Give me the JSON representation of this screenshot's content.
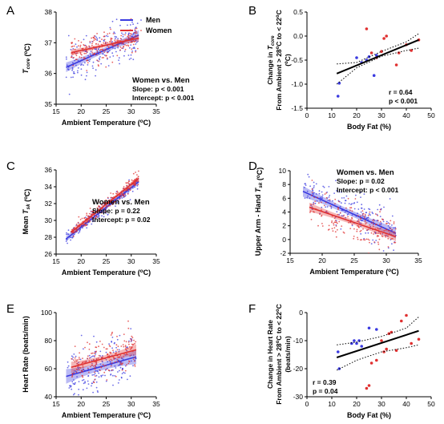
{
  "chart_data": [
    {
      "panel": "A",
      "type": "scatter",
      "xlabel": "Ambient Temperature (°C)",
      "ylabel": "T_core (°C)",
      "xlim": [
        15,
        35
      ],
      "ylim": [
        35,
        38
      ],
      "xticks": [
        15,
        20,
        25,
        30,
        35
      ],
      "yticks": [
        35,
        36,
        37,
        38
      ],
      "legend": {
        "position": "top-right",
        "entries": [
          "Men",
          "Women"
        ]
      },
      "annotation": [
        "Women vs. Men",
        "Slope: p < 0.001",
        "Intercept: p < 0.001"
      ],
      "series": [
        {
          "name": "Men",
          "color": "#3a3ae0",
          "fit": {
            "x": [
              17,
              31.5
            ],
            "y": [
              36.2,
              37.25
            ]
          },
          "ci_halfwidth": 0.12,
          "scatter": {
            "x_range": [
              17,
              31.5
            ],
            "sd": 0.35,
            "n": 200
          }
        },
        {
          "name": "Women",
          "color": "#e03030",
          "fit": {
            "x": [
              18,
              31.5
            ],
            "y": [
              36.68,
              37.15
            ]
          },
          "ci_halfwidth": 0.08,
          "scatter": {
            "x_range": [
              18,
              31.5
            ],
            "sd": 0.25,
            "n": 200
          }
        }
      ]
    },
    {
      "panel": "B",
      "type": "scatter",
      "xlabel": "Body Fat (%)",
      "ylabel": "Change in T_core From Ambient > 28°C to < 22°C (°C)",
      "xlim": [
        0,
        50
      ],
      "ylim": [
        -1.5,
        0.5
      ],
      "xticks": [
        0,
        10,
        20,
        30,
        40,
        50
      ],
      "yticks": [
        -1.5,
        -1.0,
        -0.5,
        0.0,
        0.5
      ],
      "annotation": [
        "r = 0.64",
        "p < 0.001"
      ],
      "fit": {
        "x": [
          12,
          45
        ],
        "y": [
          -0.78,
          -0.08
        ]
      },
      "ci": {
        "upper": [
          [
            12,
            -0.58
          ],
          [
            20,
            -0.55
          ],
          [
            30,
            -0.32
          ],
          [
            40,
            -0.12
          ],
          [
            45,
            0.05
          ]
        ],
        "lower": [
          [
            12,
            -1.0
          ],
          [
            20,
            -0.66
          ],
          [
            30,
            -0.42
          ],
          [
            40,
            -0.3
          ],
          [
            45,
            -0.25
          ]
        ]
      },
      "series": [
        {
          "name": "Men",
          "color": "#3a3ae0",
          "points": [
            [
              12.5,
              -1.25
            ],
            [
              13,
              -0.98
            ],
            [
              20,
              -0.45
            ],
            [
              22,
              -0.55
            ],
            [
              24,
              -0.5
            ],
            [
              25,
              -0.43
            ],
            [
              27,
              -0.82
            ],
            [
              28,
              -0.4
            ]
          ]
        },
        {
          "name": "Women",
          "color": "#e03030",
          "points": [
            [
              24,
              0.15
            ],
            [
              26,
              -0.35
            ],
            [
              28,
              -0.45
            ],
            [
              30,
              -0.32
            ],
            [
              31,
              -0.05
            ],
            [
              32,
              0.0
            ],
            [
              36,
              -0.6
            ],
            [
              37,
              -0.35
            ],
            [
              40,
              -0.18
            ],
            [
              42,
              -0.3
            ],
            [
              45,
              -0.08
            ]
          ]
        }
      ]
    },
    {
      "panel": "C",
      "type": "scatter",
      "xlabel": "Ambient Temperature (°C)",
      "ylabel": "Mean T_sk (°C)",
      "xlim": [
        15,
        35
      ],
      "ylim": [
        26,
        36
      ],
      "xticks": [
        15,
        20,
        25,
        30,
        35
      ],
      "yticks": [
        26,
        28,
        30,
        32,
        34,
        36
      ],
      "annotation": [
        "Women vs. Men",
        "Slope: p = 0.22",
        "Intercept: p = 0.02"
      ],
      "series": [
        {
          "name": "Men",
          "color": "#3a3ae0",
          "fit": {
            "x": [
              17,
              31.5
            ],
            "y": [
              27.8,
              34.6
            ]
          },
          "ci_halfwidth": 0.25,
          "scatter": {
            "x_range": [
              17,
              31.5
            ],
            "sd": 0.4,
            "n": 200
          }
        },
        {
          "name": "Women",
          "color": "#e03030",
          "fit": {
            "x": [
              18,
              31.5
            ],
            "y": [
              28.6,
              35.0
            ]
          },
          "ci_halfwidth": 0.25,
          "scatter": {
            "x_range": [
              18,
              31.5
            ],
            "sd": 0.4,
            "n": 200
          }
        }
      ]
    },
    {
      "panel": "D",
      "type": "scatter",
      "xlabel": "Ambient Temperature (°C)",
      "ylabel": "Upper Arm - Hand T_sk (°C)",
      "xlim": [
        15,
        35
      ],
      "ylim": [
        -2,
        10
      ],
      "xticks": [
        15,
        20,
        25,
        30,
        35
      ],
      "yticks": [
        -2,
        0,
        2,
        4,
        6,
        8,
        10
      ],
      "annotation": [
        "Women vs. Men",
        "Slope: p = 0.02",
        "Intercept: p < 0.001"
      ],
      "series": [
        {
          "name": "Men",
          "color": "#3a3ae0",
          "fit": {
            "x": [
              17,
              31.5
            ],
            "y": [
              7.0,
              0.9
            ]
          },
          "ci_halfwidth": 0.6,
          "scatter": {
            "x_range": [
              17,
              31.5
            ],
            "sd": 1.5,
            "n": 200
          }
        },
        {
          "name": "Women",
          "color": "#e03030",
          "fit": {
            "x": [
              18,
              31.5
            ],
            "y": [
              4.7,
              0.4
            ]
          },
          "ci_halfwidth": 0.5,
          "scatter": {
            "x_range": [
              18,
              31.5
            ],
            "sd": 1.4,
            "n": 200
          }
        }
      ]
    },
    {
      "panel": "E",
      "type": "scatter",
      "xlabel": "Ambient Temperature (°C)",
      "ylabel": "Heart Rate (beats/min)",
      "xlim": [
        15,
        35
      ],
      "ylim": [
        40,
        100
      ],
      "xticks": [
        15,
        20,
        25,
        30,
        35
      ],
      "yticks": [
        40,
        60,
        80,
        100
      ],
      "series": [
        {
          "name": "Men",
          "color": "#3a3ae0",
          "fit": {
            "x": [
              17,
              31
            ],
            "y": [
              54.5,
              68.5
            ]
          },
          "ci_halfwidth": 4.0,
          "scatter": {
            "x_range": [
              17,
              31
            ],
            "sd": 8,
            "n": 200
          }
        },
        {
          "name": "Women",
          "color": "#e03030",
          "fit": {
            "x": [
              18,
              31
            ],
            "y": [
              61,
              73.5
            ]
          },
          "ci_halfwidth": 3.0,
          "scatter": {
            "x_range": [
              18,
              31
            ],
            "sd": 7,
            "n": 200
          }
        }
      ]
    },
    {
      "panel": "F",
      "type": "scatter",
      "xlabel": "Body Fat (%)",
      "ylabel": "Change in Heart Rate From Ambient > 28°C to < 22°C (beats/min)",
      "xlim": [
        0,
        50
      ],
      "ylim": [
        -30,
        0
      ],
      "xticks": [
        0,
        10,
        20,
        30,
        40,
        50
      ],
      "yticks": [
        -30,
        -20,
        -10,
        0
      ],
      "annotation": [
        "r = 0.39",
        "p = 0.04"
      ],
      "fit": {
        "x": [
          12,
          45
        ],
        "y": [
          -16,
          -6.5
        ]
      },
      "ci": {
        "upper": [
          [
            12,
            -11.5
          ],
          [
            20,
            -10.5
          ],
          [
            30,
            -8.5
          ],
          [
            40,
            -5.5
          ],
          [
            45,
            -1.5
          ]
        ],
        "lower": [
          [
            12,
            -20.5
          ],
          [
            20,
            -17
          ],
          [
            30,
            -14
          ],
          [
            40,
            -12.5
          ],
          [
            45,
            -11.5
          ]
        ]
      },
      "series": [
        {
          "name": "Men",
          "color": "#3a3ae0",
          "points": [
            [
              12.5,
              -14
            ],
            [
              13,
              -20
            ],
            [
              18,
              -11
            ],
            [
              19,
              -10
            ],
            [
              20,
              -11
            ],
            [
              21,
              -10
            ],
            [
              22,
              -12
            ],
            [
              25,
              -5.5
            ],
            [
              28,
              -6
            ]
          ]
        },
        {
          "name": "Women",
          "color": "#e03030",
          "points": [
            [
              24,
              -27
            ],
            [
              25,
              -26
            ],
            [
              26,
              -18
            ],
            [
              28,
              -17
            ],
            [
              30,
              -10
            ],
            [
              31,
              -14
            ],
            [
              32,
              -13
            ],
            [
              33,
              -7.5
            ],
            [
              34,
              -7
            ],
            [
              36,
              -13.5
            ],
            [
              38,
              -3
            ],
            [
              40,
              -1
            ],
            [
              42,
              -11
            ],
            [
              45,
              -9.5
            ]
          ]
        }
      ]
    }
  ]
}
